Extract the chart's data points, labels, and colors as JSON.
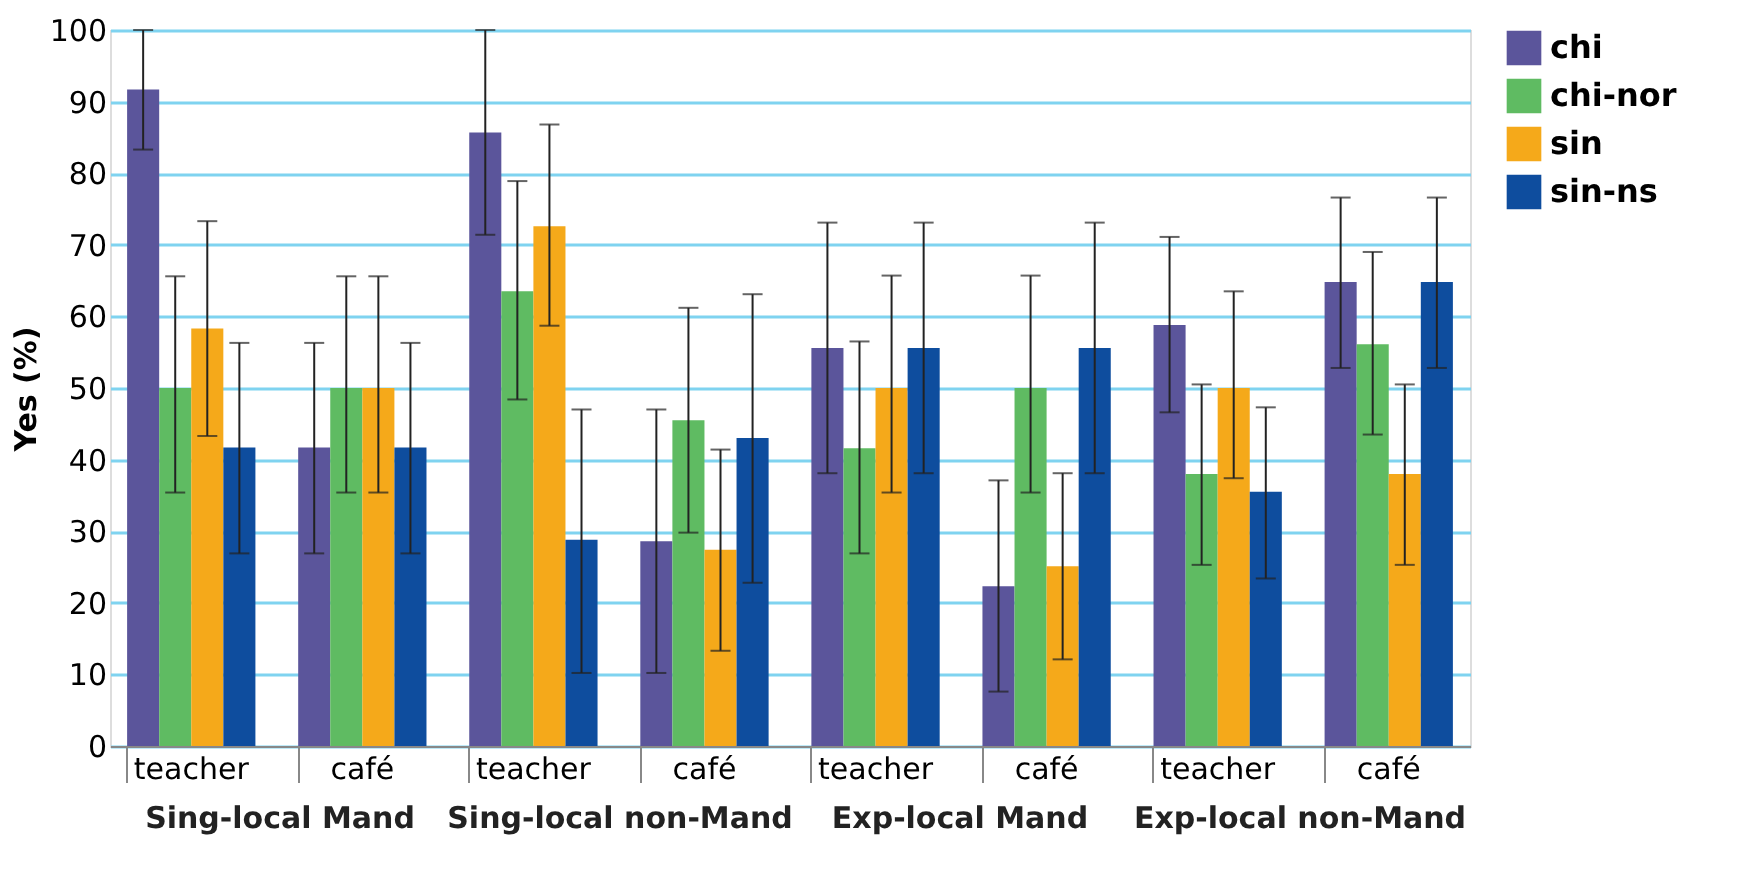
{
  "chart_data": {
    "type": "bar",
    "ylabel": "Yes (%)",
    "categories": [
      "teacher",
      "café",
      "teacher",
      "café",
      "teacher",
      "café",
      "teacher",
      "café"
    ],
    "annotations": [
      "Sing-local Mand",
      "Sing-local non-Mand",
      "Exp-local Mand",
      "Exp-local non-Mand"
    ],
    "ylim": [
      0,
      100
    ],
    "yticks": [
      0,
      10,
      20,
      30,
      40,
      50,
      60,
      70,
      80,
      90,
      100
    ],
    "grid": "y",
    "legend": "top right",
    "series": [
      {
        "name": "chi",
        "color": "#5b559b",
        "values": [
          91.7,
          41.7,
          85.7,
          28.6,
          55.6,
          22.3,
          58.8,
          64.8
        ],
        "errors": [
          [
            83.3,
            100
          ],
          [
            26.9,
            56.3
          ],
          [
            71.4,
            100
          ],
          [
            10.2,
            47
          ],
          [
            38.1,
            73.1
          ],
          [
            7.6,
            37.1
          ],
          [
            46.6,
            71.1
          ],
          [
            52.8,
            76.6
          ]
        ]
      },
      {
        "name": "chi-nor",
        "color": "#5fbb62",
        "values": [
          50,
          50,
          63.5,
          45.5,
          41.6,
          50,
          38,
          56.1
        ],
        "errors": [
          [
            35.4,
            65.6
          ],
          [
            35.4,
            65.6
          ],
          [
            48.4,
            78.9
          ],
          [
            29.8,
            61.2
          ],
          [
            26.9,
            56.5
          ],
          [
            35.4,
            65.7
          ],
          [
            25.3,
            50.5
          ],
          [
            43.5,
            69
          ]
        ]
      },
      {
        "name": "sin",
        "color": "#f5a91a",
        "values": [
          58.3,
          50,
          72.6,
          27.4,
          50,
          25.1,
          50,
          38
        ],
        "errors": [
          [
            43.3,
            73.3
          ],
          [
            35.4,
            65.6
          ],
          [
            58.7,
            86.8
          ],
          [
            13.3,
            41.4
          ],
          [
            35.4,
            65.7
          ],
          [
            12.1,
            38.1
          ],
          [
            37.4,
            63.5
          ],
          [
            25.3,
            50.5
          ]
        ]
      },
      {
        "name": "sin-ns",
        "color": "#0e4d9e",
        "values": [
          41.7,
          41.7,
          28.8,
          43,
          55.6,
          55.6,
          35.5,
          64.8
        ],
        "errors": [
          [
            26.9,
            56.3
          ],
          [
            26.9,
            56.3
          ],
          [
            10.2,
            47
          ],
          [
            22.8,
            63.1
          ],
          [
            38.1,
            73.1
          ],
          [
            38.1,
            73.1
          ],
          [
            23.4,
            47.3
          ],
          [
            52.8,
            76.6
          ]
        ]
      }
    ]
  }
}
